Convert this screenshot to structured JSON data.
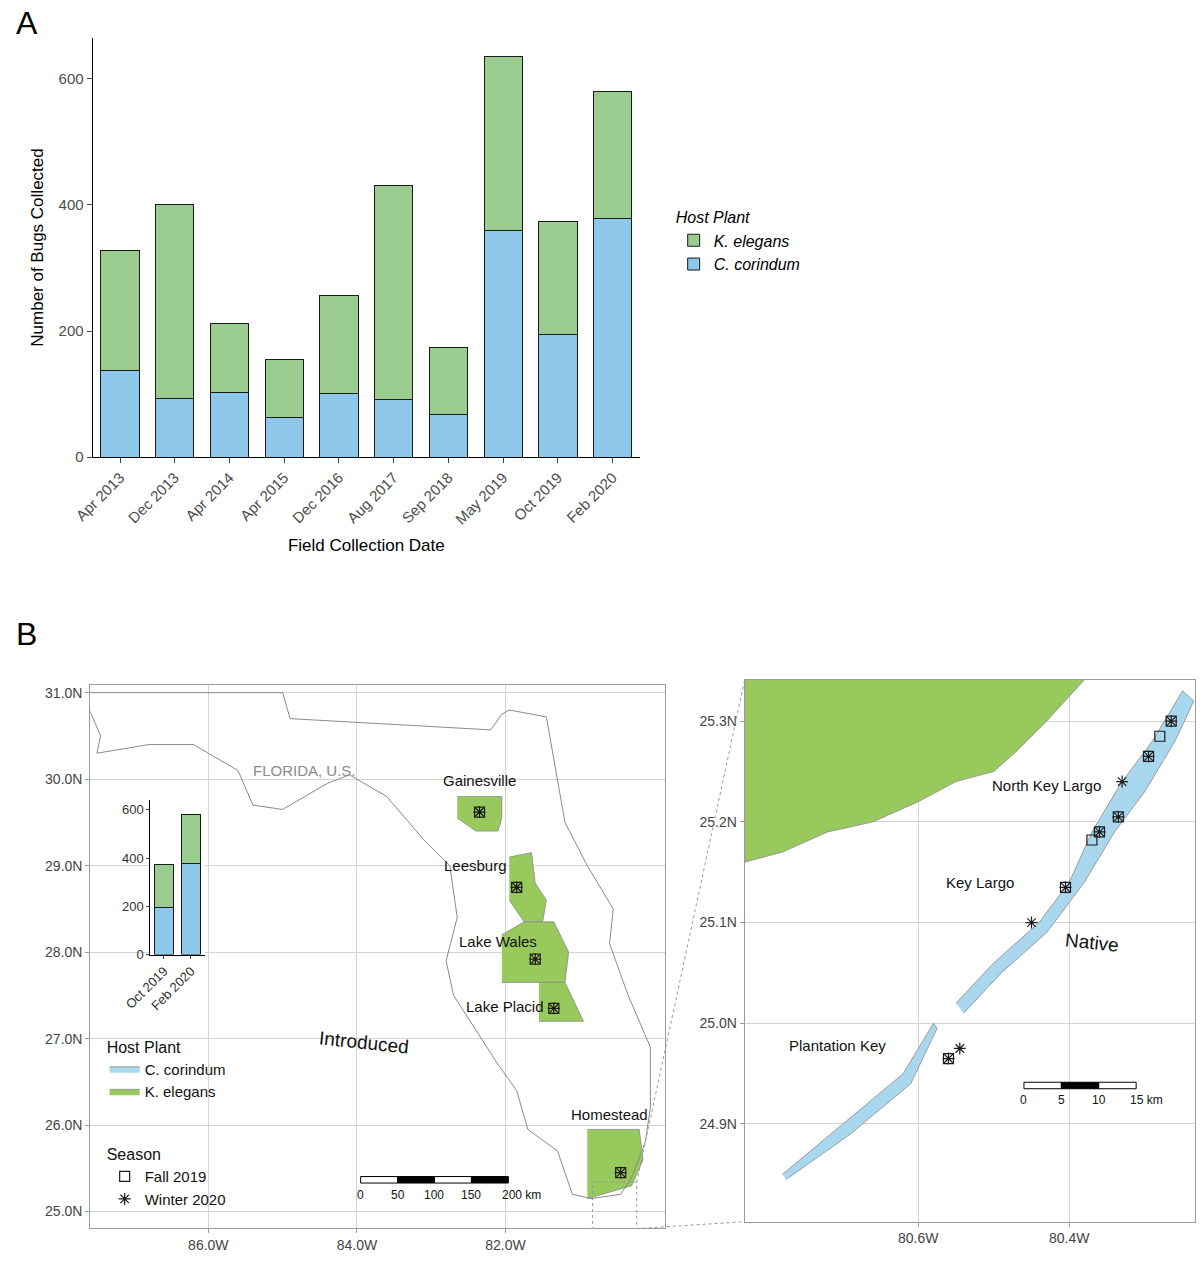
{
  "panel_labels": [
    "A",
    "B"
  ],
  "chart_data": [
    {
      "type": "bar",
      "stacked": true,
      "categories": [
        "Apr 2013",
        "Dec 2013",
        "Apr 2014",
        "Apr 2015",
        "Dec 2016",
        "Aug 2017",
        "Sep 2018",
        "May 2019",
        "Oct 2019",
        "Feb 2020"
      ],
      "series": [
        {
          "name": "C. corindum",
          "color": "#8DC8EA",
          "values": [
            137,
            93,
            102,
            63,
            101,
            92,
            68,
            360,
            195,
            379
          ]
        },
        {
          "name": "K. elegans",
          "color": "#99CC8E",
          "values": [
            190,
            307,
            110,
            91,
            155,
            339,
            106,
            276,
            179,
            201
          ]
        }
      ],
      "x_label": "Field Collection Date",
      "y_label": "Number of Bugs Collected",
      "ylim": [
        0,
        665
      ],
      "yticks": [
        0,
        200,
        400,
        600
      ],
      "legend": "right",
      "legend_title": "Host Plant",
      "grid": false
    },
    {
      "type": "map",
      "grid": true,
      "legend": "bottom left",
      "xlim": [
        -87.59,
        -79.85
      ],
      "ylim": [
        24.81,
        31.09
      ],
      "xticks": [
        {
          "value": -86,
          "label": "86.0W"
        },
        {
          "value": -84,
          "label": "84.0W"
        },
        {
          "value": -82,
          "label": "82.0W"
        }
      ],
      "yticks": [
        {
          "value": 25,
          "label": "25.0N"
        },
        {
          "value": 26,
          "label": "26.0N"
        },
        {
          "value": 27,
          "label": "27.0N"
        },
        {
          "value": 28,
          "label": "28.0N"
        },
        {
          "value": 29,
          "label": "29.0N"
        },
        {
          "value": 30,
          "label": "30.0N"
        },
        {
          "value": 31,
          "label": "31.0N"
        }
      ],
      "hosts": [
        {
          "name": "C. corindum",
          "color": "#A9D8EE"
        },
        {
          "name": "K. elegans",
          "color": "#98C95C"
        }
      ],
      "seasons": [
        {
          "name": "Fall 2019",
          "marker": "square-open"
        },
        {
          "name": "Winter 2020",
          "marker": "asterisk-open"
        }
      ],
      "legend_titles": {
        "host": "Host Plant",
        "season": "Season"
      },
      "outline": {
        "x": [
          -87.6,
          -85.0,
          -84.9,
          -82.2,
          -82.05,
          -81.95,
          -81.45,
          -81.3,
          -81.2,
          -80.9,
          -80.55,
          -80.6,
          -80.35,
          -80.05,
          -80.05,
          -80.12,
          -80.3,
          -80.45,
          -80.85,
          -81.1,
          -81.3,
          -81.7,
          -81.85,
          -82.1,
          -82.4,
          -82.7,
          -82.8,
          -82.65,
          -82.75,
          -83.1,
          -83.6,
          -84.1,
          -84.4,
          -85.0,
          -85.4,
          -85.6,
          -86.2,
          -86.8,
          -87.5,
          -87.45,
          -87.6,
          -87.6
        ],
        "y": [
          31.0,
          31.0,
          30.7,
          30.57,
          30.75,
          30.8,
          30.72,
          30.0,
          29.5,
          29.0,
          28.5,
          28.1,
          27.5,
          26.9,
          26.2,
          25.8,
          25.4,
          25.2,
          25.15,
          25.2,
          25.7,
          25.95,
          26.4,
          26.7,
          27.1,
          27.5,
          27.9,
          28.4,
          29.0,
          29.3,
          29.8,
          30.05,
          29.95,
          29.65,
          29.7,
          30.1,
          30.4,
          30.4,
          30.3,
          30.5,
          30.8,
          31.0
        ]
      },
      "regions": [
        {
          "host": "K. elegans",
          "x": [
            -82.65,
            -82.05,
            -82.05,
            -82.1,
            -82.4,
            -82.65
          ],
          "y": [
            29.8,
            29.8,
            29.55,
            29.4,
            29.4,
            29.55
          ]
        },
        {
          "host": "K. elegans",
          "x": [
            -81.95,
            -81.65,
            -81.6,
            -81.45,
            -81.5,
            -81.75,
            -81.95
          ],
          "y": [
            29.1,
            29.15,
            28.8,
            28.6,
            28.35,
            28.35,
            28.6
          ]
        },
        {
          "host": "K. elegans",
          "x": [
            -82.05,
            -81.75,
            -81.35,
            -81.15,
            -81.2,
            -82.05
          ],
          "y": [
            28.2,
            28.35,
            28.35,
            28.0,
            27.65,
            27.65
          ]
        },
        {
          "host": "K. elegans",
          "x": [
            -81.55,
            -81.2,
            -80.95,
            -81.15,
            -81.55
          ],
          "y": [
            27.65,
            27.65,
            27.2,
            27.2,
            27.2
          ]
        },
        {
          "host": "K. elegans",
          "x": [
            -80.9,
            -80.2,
            -80.15,
            -80.3,
            -80.9
          ],
          "y": [
            25.95,
            25.95,
            25.6,
            25.3,
            25.15
          ]
        }
      ],
      "sites": [
        {
          "x": -82.35,
          "y": 29.62,
          "season": "Fall 2019"
        },
        {
          "x": -82.35,
          "y": 29.62,
          "season": "Winter 2020"
        },
        {
          "x": -81.85,
          "y": 28.75,
          "season": "Fall 2019"
        },
        {
          "x": -81.85,
          "y": 28.75,
          "season": "Winter 2020"
        },
        {
          "x": -81.6,
          "y": 27.92,
          "season": "Fall 2019"
        },
        {
          "x": -81.6,
          "y": 27.92,
          "season": "Winter 2020"
        },
        {
          "x": -81.35,
          "y": 27.35,
          "season": "Fall 2019"
        },
        {
          "x": -81.35,
          "y": 27.35,
          "season": "Winter 2020"
        },
        {
          "x": -80.45,
          "y": 25.45,
          "season": "Fall 2019"
        },
        {
          "x": -80.45,
          "y": 25.45,
          "season": "Winter 2020"
        }
      ],
      "labels": [
        {
          "text": "FLORIDA, U.S.",
          "x": -84.7,
          "y": 30.1,
          "color": "#8a8a8a"
        },
        {
          "text": "Gainesville",
          "x": -82.35,
          "y": 29.99
        },
        {
          "text": "Leesburg",
          "x": -81.95,
          "y": 29.0,
          "anchor": "right"
        },
        {
          "text": "Lake Wales",
          "x": -81.55,
          "y": 28.12,
          "anchor": "right"
        },
        {
          "text": "Lake Placid",
          "x": -81.45,
          "y": 27.37,
          "anchor": "right"
        },
        {
          "text": "Homestead",
          "x": -80.6,
          "y": 26.12
        },
        {
          "text": "Introduced",
          "x": -83.9,
          "y": 26.95,
          "size": 19
        }
      ],
      "scale_bar": {
        "x": -83.95,
        "y": 25.33,
        "ticks": [
          {
            "value": 0,
            "label": "0"
          },
          {
            "value": 50,
            "label": "50"
          },
          {
            "value": 100,
            "label": "100"
          },
          {
            "value": 150,
            "label": "150"
          },
          {
            "value": 200,
            "label": "200 km"
          }
        ]
      }
    },
    {
      "type": "map",
      "grid": true,
      "xlim": [
        -80.83,
        -80.234
      ],
      "ylim": [
        24.803,
        25.341
      ],
      "xticks": [
        {
          "value": -80.6,
          "label": "80.6W"
        },
        {
          "value": -80.4,
          "label": "80.4W"
        }
      ],
      "yticks": [
        {
          "value": 24.9,
          "label": "24.9N"
        },
        {
          "value": 25.0,
          "label": "25.0N"
        },
        {
          "value": 25.1,
          "label": "25.1N"
        },
        {
          "value": 25.2,
          "label": "25.2N"
        },
        {
          "value": 25.3,
          "label": "25.3N"
        }
      ],
      "hosts": [
        {
          "name": "C. corindum",
          "color": "#A9D8EE"
        },
        {
          "name": "K. elegans",
          "color": "#98C95C"
        }
      ],
      "seasons": [
        {
          "name": "Fall 2019",
          "marker": "square-open"
        },
        {
          "name": "Winter 2020",
          "marker": "asterisk-open"
        }
      ],
      "regions": [
        {
          "host": "K. elegans",
          "x": [
            -80.83,
            -80.83,
            -80.78,
            -80.72,
            -80.66,
            -80.6,
            -80.55,
            -80.5,
            -80.47,
            -80.43,
            -80.38
          ],
          "y": [
            25.341,
            25.16,
            25.17,
            25.19,
            25.2,
            25.22,
            25.24,
            25.25,
            25.27,
            25.3,
            25.341
          ]
        },
        {
          "host": "C. corindum",
          "x": [
            -80.55,
            -80.5,
            -80.44,
            -80.4,
            -80.37,
            -80.33,
            -80.29,
            -80.25,
            -80.235,
            -80.26,
            -80.3,
            -80.34,
            -80.38,
            -80.43,
            -80.49,
            -80.54
          ],
          "y": [
            25.02,
            25.06,
            25.1,
            25.14,
            25.19,
            25.24,
            25.28,
            25.33,
            25.32,
            25.28,
            25.23,
            25.19,
            25.14,
            25.09,
            25.05,
            25.01
          ]
        },
        {
          "host": "C. corindum",
          "x": [
            -80.78,
            -80.7,
            -80.62,
            -80.58,
            -80.575,
            -80.61,
            -80.69,
            -80.775
          ],
          "y": [
            24.85,
            24.9,
            24.95,
            25.0,
            24.995,
            24.94,
            24.89,
            24.845
          ]
        }
      ],
      "sites": [
        {
          "x": -80.265,
          "y": 25.3,
          "season": "Fall 2019"
        },
        {
          "x": -80.265,
          "y": 25.3,
          "season": "Winter 2020"
        },
        {
          "x": -80.28,
          "y": 25.285,
          "season": "Fall 2019"
        },
        {
          "x": -80.295,
          "y": 25.265,
          "season": "Fall 2019"
        },
        {
          "x": -80.295,
          "y": 25.265,
          "season": "Winter 2020"
        },
        {
          "x": -80.33,
          "y": 25.24,
          "season": "Winter 2020"
        },
        {
          "x": -80.335,
          "y": 25.205,
          "season": "Fall 2019"
        },
        {
          "x": -80.335,
          "y": 25.205,
          "season": "Winter 2020"
        },
        {
          "x": -80.36,
          "y": 25.19,
          "season": "Fall 2019"
        },
        {
          "x": -80.36,
          "y": 25.19,
          "season": "Winter 2020"
        },
        {
          "x": -80.37,
          "y": 25.182,
          "season": "Fall 2019"
        },
        {
          "x": -80.405,
          "y": 25.135,
          "season": "Fall 2019"
        },
        {
          "x": -80.405,
          "y": 25.135,
          "season": "Winter 2020"
        },
        {
          "x": -80.45,
          "y": 25.1,
          "season": "Winter 2020"
        },
        {
          "x": -80.56,
          "y": 24.965,
          "season": "Fall 2019"
        },
        {
          "x": -80.56,
          "y": 24.965,
          "season": "Winter 2020"
        },
        {
          "x": -80.545,
          "y": 24.975,
          "season": "Winter 2020"
        }
      ],
      "labels": [
        {
          "text": "North Key Largo",
          "x": -80.355,
          "y": 25.236,
          "anchor": "right"
        },
        {
          "text": "Key Largo",
          "x": -80.47,
          "y": 25.14,
          "anchor": "right"
        },
        {
          "text": "Plantation Key",
          "x": -80.64,
          "y": 24.978,
          "anchor": "right"
        },
        {
          "text": "Native",
          "x": -80.37,
          "y": 25.08,
          "size": 19
        }
      ],
      "scale_bar": {
        "x": -80.46,
        "y": 24.935,
        "ticks": [
          {
            "value": 0,
            "label": "0"
          },
          {
            "value": 5,
            "label": "5"
          },
          {
            "value": 10,
            "label": "10"
          },
          {
            "value": 15,
            "label": "15 km"
          }
        ]
      }
    },
    {
      "type": "bar",
      "stacked": true,
      "categories": [
        "Oct 2019",
        "Feb 2020"
      ],
      "series": [
        {
          "name": "C. corindum",
          "color": "#8DC8EA",
          "values": [
            195,
            379
          ]
        },
        {
          "name": "K. elegans",
          "color": "#99CC8E",
          "values": [
            179,
            201
          ]
        }
      ],
      "ylim": [
        0,
        640
      ],
      "yticks": [
        0,
        200,
        400,
        600
      ]
    }
  ]
}
